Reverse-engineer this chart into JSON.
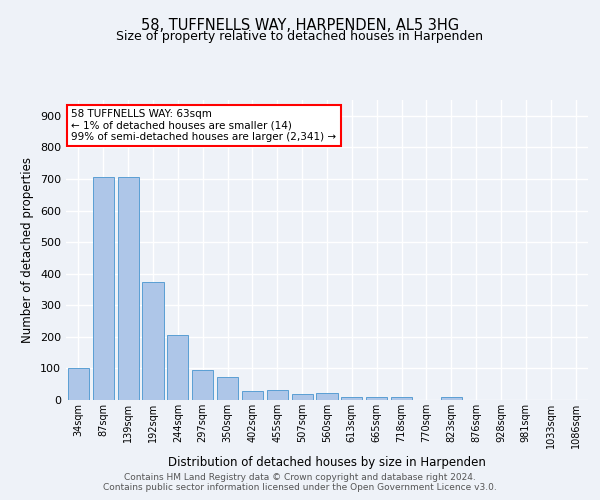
{
  "title1": "58, TUFFNELLS WAY, HARPENDEN, AL5 3HG",
  "title2": "Size of property relative to detached houses in Harpenden",
  "xlabel": "Distribution of detached houses by size in Harpenden",
  "ylabel": "Number of detached properties",
  "footer1": "Contains HM Land Registry data © Crown copyright and database right 2024.",
  "footer2": "Contains public sector information licensed under the Open Government Licence v3.0.",
  "annotation_line1": "58 TUFFNELLS WAY: 63sqm",
  "annotation_line2": "← 1% of detached houses are smaller (14)",
  "annotation_line3": "99% of semi-detached houses are larger (2,341) →",
  "bar_labels": [
    "34sqm",
    "87sqm",
    "139sqm",
    "192sqm",
    "244sqm",
    "297sqm",
    "350sqm",
    "402sqm",
    "455sqm",
    "507sqm",
    "560sqm",
    "613sqm",
    "665sqm",
    "718sqm",
    "770sqm",
    "823sqm",
    "876sqm",
    "928sqm",
    "981sqm",
    "1033sqm",
    "1086sqm"
  ],
  "bar_values": [
    100,
    707,
    707,
    375,
    207,
    95,
    72,
    30,
    32,
    20,
    22,
    10,
    8,
    8,
    0,
    10,
    0,
    0,
    0,
    0,
    0
  ],
  "bar_color": "#aec6e8",
  "bar_edge_color": "#5a9fd4",
  "background_color": "#eef2f8",
  "grid_color": "#ffffff",
  "ylim": [
    0,
    950
  ],
  "yticks": [
    0,
    100,
    200,
    300,
    400,
    500,
    600,
    700,
    800,
    900
  ],
  "title1_fontsize": 10.5,
  "title2_fontsize": 9,
  "ylabel_fontsize": 8.5,
  "xlabel_fontsize": 8.5,
  "tick_fontsize": 8,
  "xtick_fontsize": 7
}
